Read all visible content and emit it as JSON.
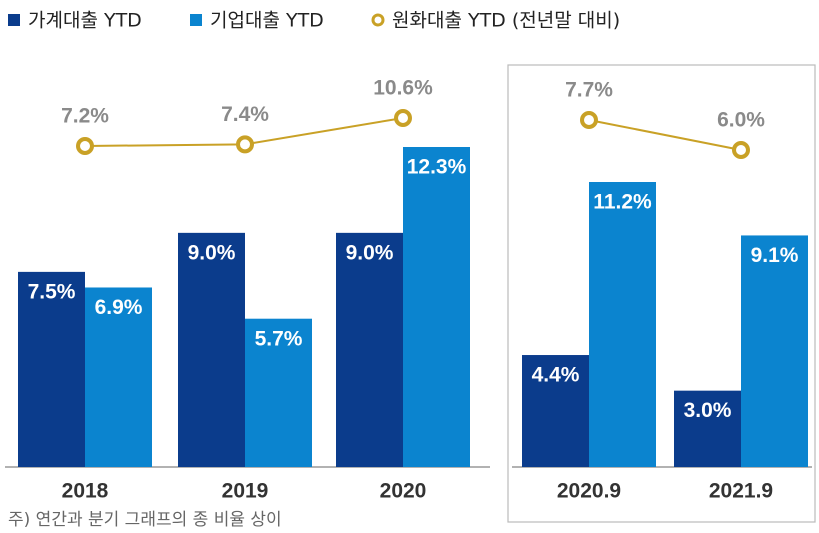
{
  "chart_data": [
    {
      "type": "bar",
      "categories": [
        "2018",
        "2019",
        "2020"
      ],
      "series": [
        {
          "name": "가계대출 YTD",
          "color": "#0b3c8c",
          "values": [
            7.5,
            9.0,
            9.0
          ],
          "value_labels": [
            "7.5%",
            "9.0%",
            "9.0%"
          ]
        },
        {
          "name": "기업대출 YTD",
          "color": "#0b84cf",
          "values": [
            6.9,
            5.7,
            12.3
          ],
          "value_labels": [
            "6.9%",
            "5.7%",
            "12.3%"
          ]
        },
        {
          "name": "원화대출 YTD (전년말 대비)",
          "color": "#c9a126",
          "type": "line",
          "axis": "y2",
          "values": [
            7.2,
            7.4,
            10.6
          ],
          "value_labels": [
            "7.2%",
            "7.4%",
            "10.6%"
          ]
        }
      ]
    },
    {
      "type": "bar",
      "categories": [
        "2020.9",
        "2021.9"
      ],
      "series": [
        {
          "color": "#0b3c8c",
          "values": [
            4.4,
            3.0
          ],
          "value_labels": [
            "4.4%",
            "3.0%"
          ]
        },
        {
          "color": "#0b84cf",
          "values": [
            11.2,
            9.1
          ],
          "value_labels": [
            "11.2%",
            "9.1%"
          ]
        },
        {
          "color": "#c9a126",
          "type": "line",
          "axis": "y2",
          "values": [
            7.7,
            6.0
          ],
          "value_labels": [
            "7.7%",
            "6.0%"
          ]
        }
      ]
    }
  ],
  "note": "주) 연간과 분기 그래프의 종 비율 상이"
}
